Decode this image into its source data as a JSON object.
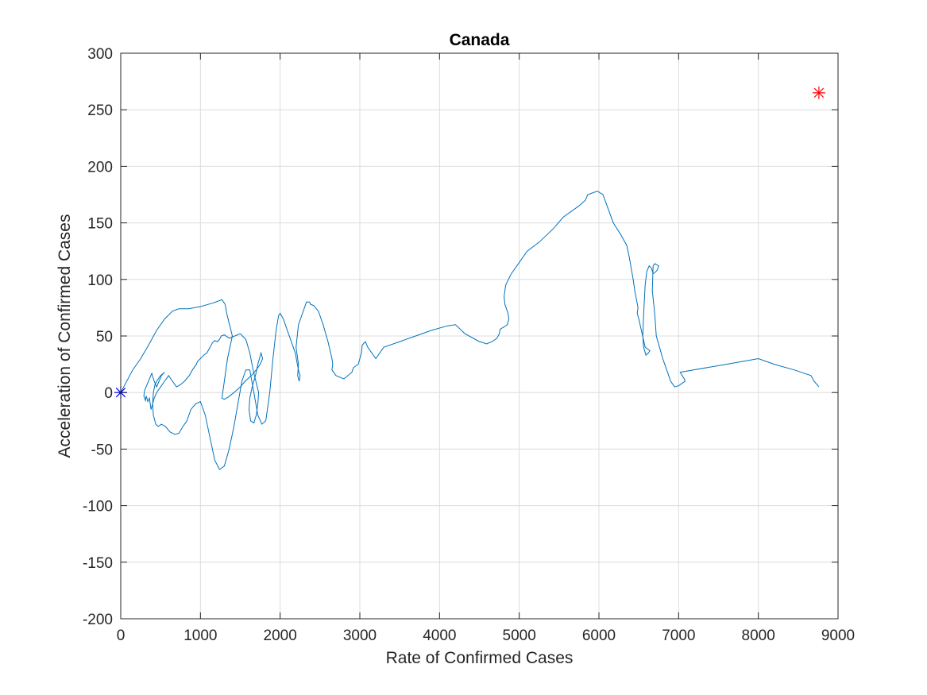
{
  "chart_data": {
    "type": "line",
    "title": "Canada",
    "xlabel": "Rate of Confirmed Cases",
    "ylabel": "Acceleration of Confirmed Cases",
    "xlim": [
      0,
      9000
    ],
    "ylim": [
      -200,
      300
    ],
    "xticks": [
      0,
      1000,
      2000,
      3000,
      4000,
      5000,
      6000,
      7000,
      8000,
      9000
    ],
    "yticks": [
      -200,
      -150,
      -100,
      -50,
      0,
      50,
      100,
      150,
      200,
      250,
      300
    ],
    "grid": true,
    "colors": {
      "series": "#0072BD",
      "start_marker": "#0000FF",
      "end_marker": "#FF0000",
      "axes": "#262626",
      "grid": "#DCDCDC"
    },
    "start_marker": {
      "x": 0,
      "y": 0,
      "symbol": "asterisk"
    },
    "end_marker": {
      "x": 8760,
      "y": 265,
      "symbol": "asterisk"
    },
    "series": [
      {
        "x": [
          0,
          60,
          150,
          250,
          350,
          450,
          550,
          650,
          730,
          850,
          1000,
          1150,
          1270,
          1310,
          1330,
          1400,
          1340,
          1300,
          1280,
          1270,
          1300,
          1350,
          1420,
          1500,
          1560,
          1640,
          1700,
          1750,
          1780,
          1760,
          1720,
          1690,
          1650,
          1620,
          1610,
          1630,
          1670,
          1700,
          1720,
          1730,
          1660,
          1620,
          1570,
          1500,
          1430,
          1360,
          1300,
          1260,
          1240,
          1210,
          1180,
          1150,
          1120,
          1080,
          1040,
          1000,
          970,
          960,
          950,
          900,
          860,
          800,
          750,
          700,
          650,
          600,
          550,
          500,
          450,
          420,
          400,
          380,
          370,
          360,
          340,
          320,
          310,
          300,
          290,
          300,
          330,
          360,
          390,
          420,
          450,
          480,
          510,
          550,
          500,
          460,
          430,
          410,
          400,
          410,
          440,
          470,
          510,
          560,
          620,
          680,
          730,
          780,
          830,
          880,
          940,
          1000,
          1060,
          1120,
          1180,
          1240,
          1300,
          1360,
          1420,
          1470,
          1520,
          1570,
          1620,
          1670,
          1720,
          1770,
          1820,
          1870,
          1910,
          1950,
          1980,
          2000,
          2040,
          2090,
          2140,
          2190,
          2230,
          2250,
          2240,
          2220,
          2230,
          2200,
          2230,
          2280,
          2330,
          2370,
          2380,
          2420,
          2480,
          2540,
          2600,
          2650,
          2660,
          2650,
          2700,
          2800,
          2900,
          2920,
          2980,
          3000,
          3020,
          3030,
          3070,
          3100,
          3200,
          3300,
          3500,
          3700,
          3900,
          4100,
          4200,
          4320,
          4500,
          4550,
          4590,
          4660,
          4720,
          4750,
          4760,
          4810,
          4850,
          4870,
          4860,
          4820,
          4810,
          4830,
          4900,
          5000,
          5100,
          5250,
          5430,
          5550,
          5750,
          5830,
          5860,
          5980,
          6050,
          6180,
          6270,
          6350,
          6380,
          6430,
          6450,
          6490,
          6480,
          6500,
          6580,
          6640,
          6620,
          6590,
          6560,
          6550,
          6560,
          6580,
          6600,
          6630,
          6660,
          6680,
          6700,
          6730,
          6750,
          6700,
          6680,
          6670,
          6700,
          6720,
          6760,
          6800,
          6850,
          6900,
          6950,
          7000,
          7040,
          7080,
          7070,
          7020,
          7600,
          8000,
          8200,
          8450,
          8660,
          8700,
          8760
        ]
      }
    ]
  }
}
